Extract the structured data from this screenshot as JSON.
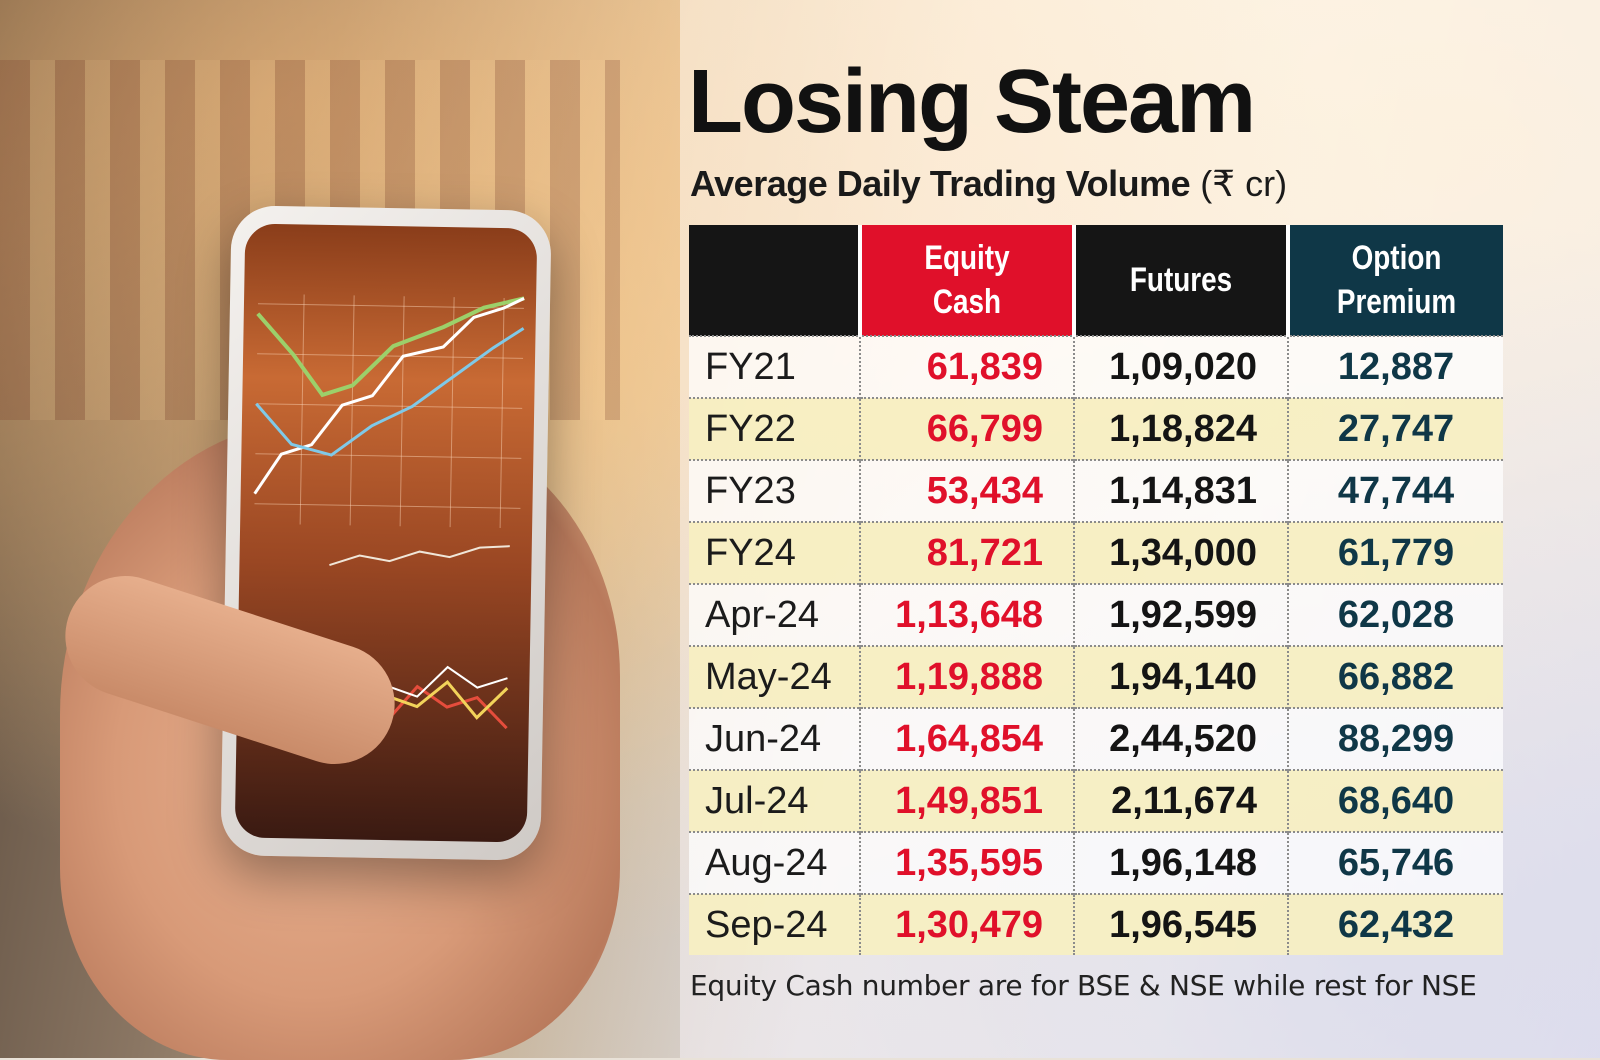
{
  "title": "Losing Steam",
  "subtitle": {
    "main": "Average Daily Trading Volume",
    "unit": "(₹ cr)"
  },
  "chart_data": {
    "type": "table",
    "title": "Losing Steam",
    "subtitle": "Average Daily Trading Volume (₹ cr)",
    "columns": [
      "",
      "Equity Cash",
      "Futures",
      "Option Premium"
    ],
    "header_lines": [
      [
        ""
      ],
      [
        "Equity",
        "Cash"
      ],
      [
        "Futures"
      ],
      [
        "Option",
        "Premium"
      ]
    ],
    "rows": [
      {
        "period": "FY21",
        "equity_cash": "61,839",
        "futures": "1,09,020",
        "option_premium": "12,887"
      },
      {
        "period": "FY22",
        "equity_cash": "66,799",
        "futures": "1,18,824",
        "option_premium": "27,747"
      },
      {
        "period": "FY23",
        "equity_cash": "53,434",
        "futures": "1,14,831",
        "option_premium": "47,744"
      },
      {
        "period": "FY24",
        "equity_cash": "81,721",
        "futures": "1,34,000",
        "option_premium": "61,779"
      },
      {
        "period": "Apr-24",
        "equity_cash": "1,13,648",
        "futures": "1,92,599",
        "option_premium": "62,028"
      },
      {
        "period": "May-24",
        "equity_cash": "1,19,888",
        "futures": "1,94,140",
        "option_premium": "66,882"
      },
      {
        "period": "Jun-24",
        "equity_cash": "1,64,854",
        "futures": "2,44,520",
        "option_premium": "88,299"
      },
      {
        "period": "Jul-24",
        "equity_cash": "1,49,851",
        "futures": "2,11,674",
        "option_premium": "68,640"
      },
      {
        "period": "Aug-24",
        "equity_cash": "1,35,595",
        "futures": "1,96,148",
        "option_premium": "65,746"
      },
      {
        "period": "Sep-24",
        "equity_cash": "1,30,479",
        "futures": "1,96,545",
        "option_premium": "62,432"
      }
    ],
    "colors": {
      "equity_cash": "#e0102a",
      "futures": "#151515",
      "option_premium": "#0f3747",
      "row_alt": "#f7efc1"
    }
  },
  "note": "Equity Cash number are for BSE & NSE while rest for NSE"
}
